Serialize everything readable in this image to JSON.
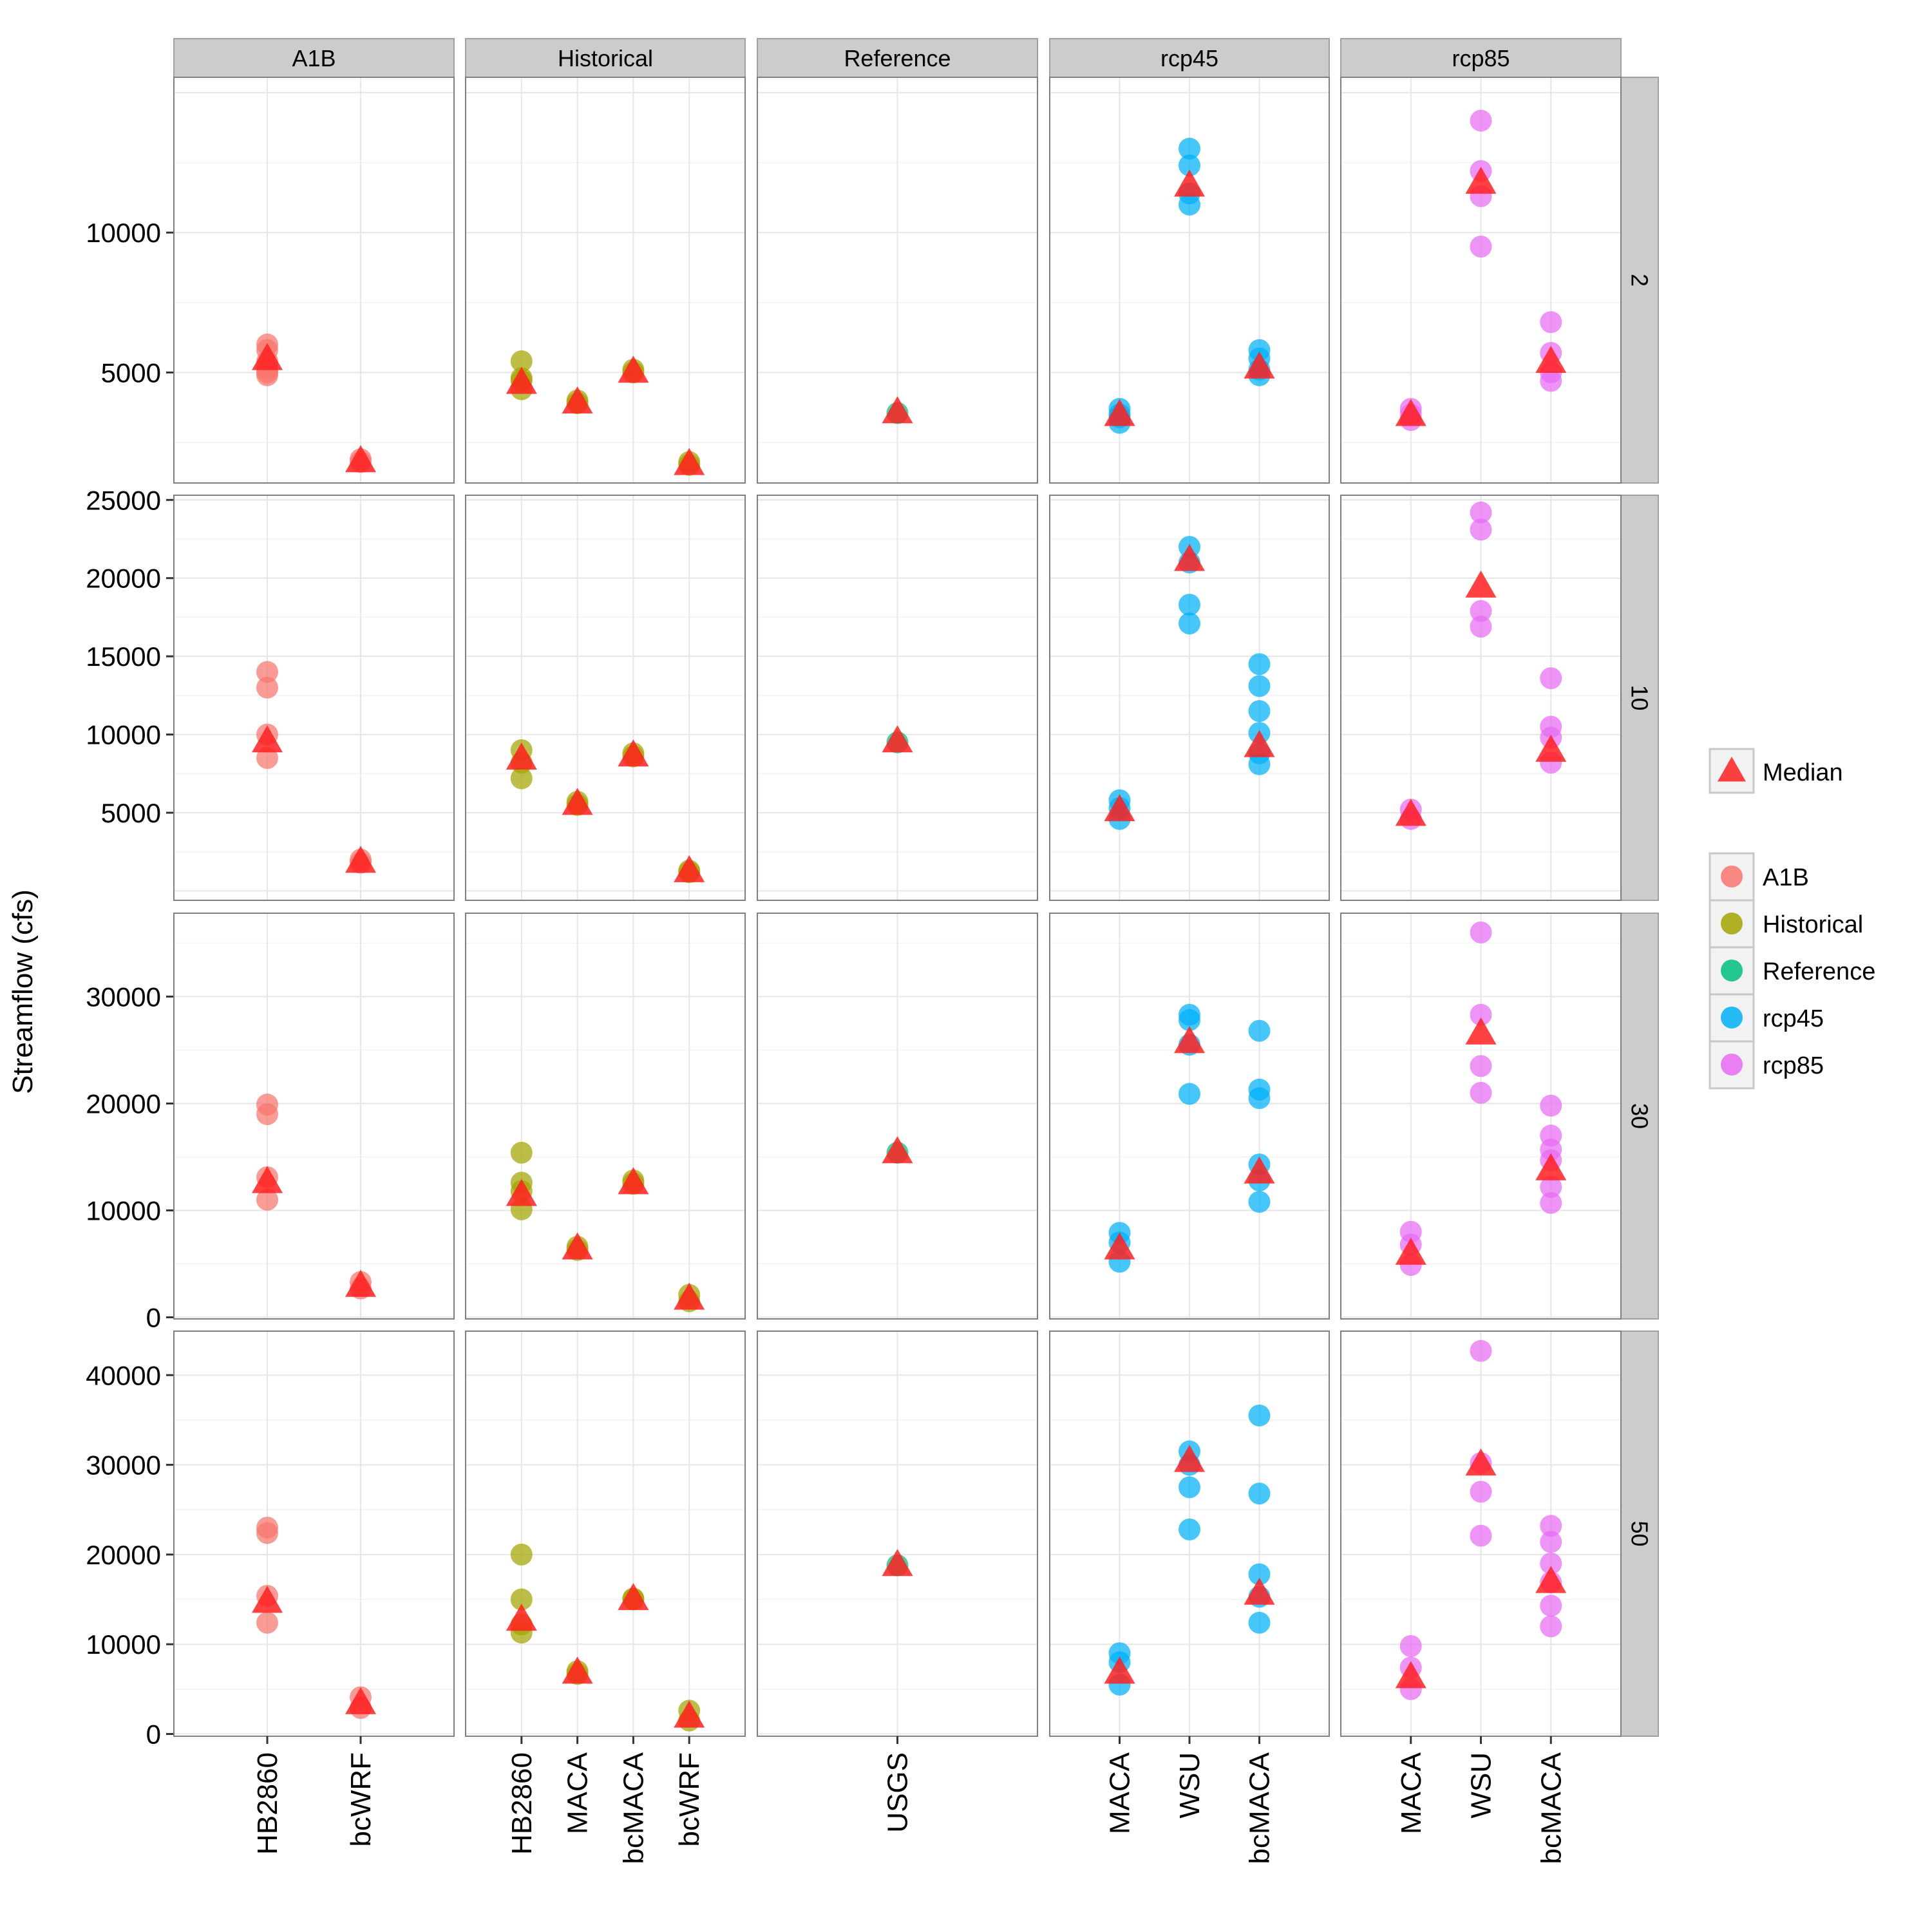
{
  "chart_data": {
    "type": "scatter",
    "ylabel": "Streamflow (cfs)",
    "grid": true,
    "legend_placement": "right",
    "facet_columns": [
      "A1B",
      "Historical",
      "Reference",
      "rcp45",
      "rcp85"
    ],
    "facet_rows": [
      "2",
      "10",
      "30",
      "50"
    ],
    "column_categories": {
      "A1B": [
        "HB2860",
        "bcWRF"
      ],
      "Historical": [
        "HB2860",
        "MACA",
        "bcMACA",
        "bcWRF"
      ],
      "Reference": [
        "USGS"
      ],
      "rcp45": [
        "MACA",
        "WSU",
        "bcMACA"
      ],
      "rcp85": [
        "MACA",
        "WSU",
        "bcMACA"
      ]
    },
    "row_axes": {
      "2": {
        "ylim": [
          1050,
          15550
        ],
        "ticks": [
          5000,
          10000
        ]
      },
      "10": {
        "ylim": [
          -600,
          25300
        ],
        "ticks": [
          5000,
          10000,
          15000,
          20000,
          25000
        ]
      },
      "30": {
        "ylim": [
          -150,
          37800
        ],
        "ticks": [
          0,
          10000,
          20000,
          30000
        ]
      },
      "50": {
        "ylim": [
          -250,
          44900
        ],
        "ticks": [
          0,
          10000,
          20000,
          30000,
          40000
        ]
      }
    },
    "series_colors": {
      "A1B": "#F8766D",
      "Historical": "#A3A500",
      "Reference": "#00BF7D",
      "rcp45": "#00B0F6",
      "rcp85": "#E76BF3",
      "Median": "#FF2020"
    },
    "legend": {
      "median_label": "Median",
      "series_labels": [
        "A1B",
        "Historical",
        "Reference",
        "rcp45",
        "rcp85"
      ]
    },
    "points": {
      "2": {
        "A1B": {
          "HB2860": {
            "values": [
              6000,
              5800,
              5400,
              5100,
              4900,
              5000
            ],
            "median": 5500
          },
          "bcWRF": {
            "values": [
              1800,
              1900
            ],
            "median": 1850
          }
        },
        "Historical": {
          "HB2860": {
            "values": [
              5400,
              4800,
              4400,
              4700
            ],
            "median": 4650
          },
          "MACA": {
            "values": [
              3900,
              4000
            ],
            "median": 3950
          },
          "bcMACA": {
            "values": [
              5000,
              5100
            ],
            "median": 5050
          },
          "bcWRF": {
            "values": [
              1800,
              1700
            ],
            "median": 1750
          }
        },
        "Reference": {
          "USGS": {
            "values": [
              3550
            ],
            "median": 3600
          }
        },
        "rcp45": {
          "MACA": {
            "values": [
              3700,
              3400,
              3200,
              3500
            ],
            "median": 3500
          },
          "WSU": {
            "values": [
              13000,
              12400,
              11400,
              11000
            ],
            "median": 11700
          },
          "bcMACA": {
            "values": [
              5800,
              5500,
              5100,
              4900
            ],
            "median": 5200
          },
          "wrapper": null
        },
        "rcp85": {
          "MACA": {
            "values": [
              3700,
              3300,
              3500
            ],
            "median": 3500
          },
          "WSU": {
            "values": [
              14000,
              12200,
              11300,
              9500
            ],
            "median": 11800
          },
          "bcMACA": {
            "values": [
              6800,
              5700,
              5000,
              4700
            ],
            "median": 5400
          }
        }
      },
      "10": {
        "A1B": {
          "HB2860": {
            "values": [
              14000,
              13000,
              10000,
              8500
            ],
            "median": 9600
          },
          "bcWRF": {
            "values": [
              2000,
              1800
            ],
            "median": 1900
          }
        },
        "Historical": {
          "HB2860": {
            "values": [
              9000,
              8200,
              7200
            ],
            "median": 8500
          },
          "MACA": {
            "values": [
              5700,
              5500
            ],
            "median": 5600
          },
          "bcMACA": {
            "values": [
              8600,
              8800
            ],
            "median": 8700
          },
          "bcWRF": {
            "values": [
              1300,
              1200
            ],
            "median": 1300
          }
        },
        "Reference": {
          "USGS": {
            "values": [
              9500
            ],
            "median": 9600
          }
        },
        "rcp45": {
          "MACA": {
            "values": [
              5800,
              5300,
              4600
            ],
            "median": 5200
          },
          "WSU": {
            "values": [
              22000,
              21000,
              18300,
              17100
            ],
            "median": 21200
          },
          "bcMACA": {
            "values": [
              14500,
              13100,
              11500,
              10100,
              8800,
              8100
            ],
            "median": 9300
          }
        },
        "rcp85": {
          "MACA": {
            "values": [
              5200,
              4600
            ],
            "median": 4900
          },
          "WSU": {
            "values": [
              24200,
              23100,
              17900,
              16900
            ],
            "median": 19500
          },
          "bcMACA": {
            "values": [
              13600,
              10500,
              9800,
              8200
            ],
            "median": 9000
          }
        }
      },
      "30": {
        "A1B": {
          "HB2860": {
            "values": [
              19900,
              19000,
              13100,
              11000
            ],
            "median": 12700
          },
          "bcWRF": {
            "values": [
              3300,
              2700
            ],
            "median": 3000
          }
        },
        "Historical": {
          "HB2860": {
            "values": [
              15400,
              12600,
              10100,
              11800
            ],
            "median": 11500
          },
          "MACA": {
            "values": [
              6600,
              6300
            ],
            "median": 6500
          },
          "bcMACA": {
            "values": [
              12800,
              12500
            ],
            "median": 12600
          },
          "bcWRF": {
            "values": [
              2100,
              1500
            ],
            "median": 1800
          }
        },
        "Reference": {
          "USGS": {
            "values": [
              15400
            ],
            "median": 15500
          }
        },
        "rcp45": {
          "MACA": {
            "values": [
              7900,
              7000,
              5200
            ],
            "median": 6500
          },
          "WSU": {
            "values": [
              28300,
              27800,
              25500,
              20900
            ],
            "median": 25800
          },
          "bcMACA": {
            "values": [
              26800,
              21300,
              20500,
              14300,
              12800,
              10800
            ],
            "median": 13600
          }
        },
        "rcp85": {
          "MACA": {
            "values": [
              8000,
              6800,
              4900
            ],
            "median": 6000
          },
          "WSU": {
            "values": [
              36000,
              28300,
              23500,
              21000
            ],
            "median": 26600
          },
          "bcMACA": {
            "values": [
              19800,
              17000,
              15700,
              14700,
              12200,
              10700
            ],
            "median": 13900
          }
        }
      },
      "50": {
        "A1B": {
          "HB2860": {
            "values": [
              23000,
              22400,
              15400,
              12400
            ],
            "median": 14800
          },
          "bcWRF": {
            "values": [
              4100,
              2900
            ],
            "median": 3500
          }
        },
        "Historical": {
          "HB2860": {
            "values": [
              20000,
              15000,
              11300,
              12200
            ],
            "median": 12800
          },
          "MACA": {
            "values": [
              7000,
              6700
            ],
            "median": 6900
          },
          "bcMACA": {
            "values": [
              15100,
              15000
            ],
            "median": 15100
          },
          "bcWRF": {
            "values": [
              2600,
              1500
            ],
            "median": 2000
          }
        },
        "Reference": {
          "USGS": {
            "values": [
              18800
            ],
            "median": 18900
          }
        },
        "rcp45": {
          "MACA": {
            "values": [
              9000,
              8000,
              5500
            ],
            "median": 6900
          },
          "WSU": {
            "values": [
              31500,
              30000,
              27500,
              22800
            ],
            "median": 30500
          },
          "bcMACA": {
            "values": [
              35500,
              26800,
              17800,
              15300,
              12400
            ],
            "median": 15700
          }
        },
        "rcp85": {
          "MACA": {
            "values": [
              9800,
              7400,
              5000
            ],
            "median": 6400
          },
          "WSU": {
            "values": [
              42700,
              30200,
              27000,
              22100
            ],
            "median": 30100
          },
          "bcMACA": {
            "values": [
              23200,
              21400,
              19000,
              16900,
              14300,
              12000
            ],
            "median": 17000
          }
        }
      }
    }
  }
}
